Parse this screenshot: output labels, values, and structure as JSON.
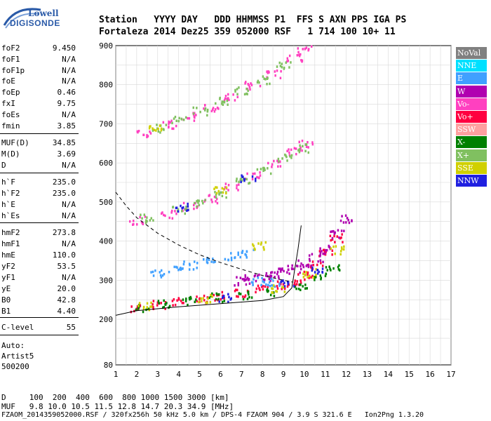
{
  "logo": {
    "line1": "Lowell",
    "line2": "DIGISONDE"
  },
  "header": {
    "row1": "Station   YYYY DAY   DDD HHMMSS P1  FFS S AXN PPS IGA PS",
    "row2": "Fortaleza 2014 Dez25 359 052000 RSF   1 714 100 10+ 11"
  },
  "params": [
    {
      "name": "foF2",
      "value": "9.450"
    },
    {
      "name": "foF1",
      "value": "N/A"
    },
    {
      "name": "foF1p",
      "value": "N/A"
    },
    {
      "name": "foE",
      "value": "N/A"
    },
    {
      "name": "foEp",
      "value": "0.46"
    },
    {
      "name": "fxI",
      "value": "9.75"
    },
    {
      "name": "foEs",
      "value": "N/A"
    },
    {
      "name": "fmin",
      "value": "3.85"
    },
    {
      "name": "MUF(D)",
      "value": "34.85"
    },
    {
      "name": "M(D)",
      "value": "3.69"
    },
    {
      "name": "D",
      "value": "N/A"
    },
    {
      "name": "h`F",
      "value": "235.0"
    },
    {
      "name": "h`F2",
      "value": "235.0"
    },
    {
      "name": "h`E",
      "value": "N/A"
    },
    {
      "name": "h`Es",
      "value": "N/A"
    },
    {
      "name": "hmF2",
      "value": "273.8"
    },
    {
      "name": "hmF1",
      "value": "N/A"
    },
    {
      "name": "hmE",
      "value": "110.0"
    },
    {
      "name": "yF2",
      "value": "53.5"
    },
    {
      "name": "yF1",
      "value": "N/A"
    },
    {
      "name": "yE",
      "value": "20.0"
    },
    {
      "name": "B0",
      "value": "42.8"
    },
    {
      "name": "B1",
      "value": "4.40"
    },
    {
      "name": "C-level",
      "value": "55"
    }
  ],
  "auto": {
    "label": "Auto:",
    "artist": "Artist5",
    "version": "500200"
  },
  "legend": [
    {
      "label": "NoVal",
      "color": "#808080"
    },
    {
      "label": "NNE",
      "color": "#00e0ff"
    },
    {
      "label": "E",
      "color": "#40a0ff"
    },
    {
      "label": "W",
      "color": "#b000b0"
    },
    {
      "label": "Vo-",
      "color": "#ff40c0"
    },
    {
      "label": "Vo+",
      "color": "#ff0040"
    },
    {
      "label": "SSW",
      "color": "#ffa0a0"
    },
    {
      "label": "X-",
      "color": "#008000"
    },
    {
      "label": "X+",
      "color": "#80c060"
    },
    {
      "label": "SSE",
      "color": "#d0d000"
    },
    {
      "label": "NNW",
      "color": "#2020e0"
    }
  ],
  "footer": {
    "d_row": "D     100  200  400  600  800 1000 1500 3000 [km]",
    "muf_row": "MUF   9.8 10.0 10.5 11.5 12.8 14.7 20.3 34.9 [MHz]",
    "file_row": "FZAOM_2014359052000.RSF / 320fx256h 50 kHz 5.0 km / DPS-4 FZAOM 904 / 3.9 S 321.6 E   Ion2Png 1.3.20"
  },
  "chart_data": {
    "type": "scatter",
    "x_ticks": [
      1,
      2,
      3,
      4,
      5,
      6,
      7,
      8,
      9,
      10,
      11,
      12,
      13,
      14,
      15,
      16,
      17
    ],
    "y_ticks": [
      80,
      200,
      300,
      400,
      500,
      600,
      700,
      800,
      900
    ],
    "xlim": [
      1,
      17
    ],
    "ylim": [
      80,
      900
    ],
    "grid": true,
    "legend_position": "right",
    "series": [
      {
        "name": "Vo+",
        "color": "#ff0040",
        "points": [
          [
            2.0,
            230
          ],
          [
            3.0,
            240
          ],
          [
            4.0,
            248
          ],
          [
            5.0,
            255
          ],
          [
            6.0,
            262
          ],
          [
            7.0,
            268
          ],
          [
            8.0,
            278
          ],
          [
            9.0,
            290
          ],
          [
            9.5,
            300
          ],
          [
            10.0,
            315
          ],
          [
            10.5,
            340
          ],
          [
            11.0,
            370
          ],
          [
            11.5,
            410
          ]
        ]
      },
      {
        "name": "X-",
        "color": "#008000",
        "points": [
          [
            2.2,
            232
          ],
          [
            3.3,
            242
          ],
          [
            4.5,
            250
          ],
          [
            5.8,
            258
          ],
          [
            7.2,
            264
          ],
          [
            8.5,
            272
          ],
          [
            9.8,
            286
          ],
          [
            10.8,
            310
          ],
          [
            11.3,
            335
          ]
        ]
      },
      {
        "name": "W",
        "color": "#b000b0",
        "points": [
          [
            7.0,
            300
          ],
          [
            7.5,
            305
          ],
          [
            8.0,
            310
          ],
          [
            8.5,
            318
          ],
          [
            9.0,
            325
          ],
          [
            9.5,
            332
          ],
          [
            10.0,
            345
          ],
          [
            10.5,
            360
          ],
          [
            11.0,
            380
          ],
          [
            11.5,
            420
          ],
          [
            12.0,
            460
          ]
        ]
      },
      {
        "name": "E",
        "color": "#40a0ff",
        "points": [
          [
            3.0,
            320
          ],
          [
            3.8,
            330
          ],
          [
            4.5,
            340
          ],
          [
            5.5,
            350
          ],
          [
            6.5,
            365
          ],
          [
            7.2,
            370
          ],
          [
            7.8,
            300
          ],
          [
            8.5,
            296
          ]
        ]
      },
      {
        "name": "Vo-",
        "color": "#ff40c0",
        "points": [
          [
            2.0,
            455
          ],
          [
            3.5,
            470
          ],
          [
            4.5,
            490
          ],
          [
            5.5,
            510
          ],
          [
            6.5,
            540
          ],
          [
            7.5,
            570
          ],
          [
            8.5,
            600
          ],
          [
            9.5,
            630
          ],
          [
            10.0,
            650
          ],
          [
            2.3,
            675
          ],
          [
            3.5,
            700
          ],
          [
            4.5,
            720
          ],
          [
            5.5,
            745
          ],
          [
            6.5,
            770
          ],
          [
            7.5,
            800
          ],
          [
            8.5,
            830
          ],
          [
            9.5,
            870
          ],
          [
            10.0,
            890
          ]
        ]
      },
      {
        "name": "X+",
        "color": "#80c060",
        "points": [
          [
            2.5,
            460
          ],
          [
            4.0,
            480
          ],
          [
            5.0,
            500
          ],
          [
            6.0,
            525
          ],
          [
            7.0,
            555
          ],
          [
            8.0,
            585
          ],
          [
            9.0,
            615
          ],
          [
            10.0,
            640
          ],
          [
            3.0,
            690
          ],
          [
            4.0,
            710
          ],
          [
            5.0,
            735
          ],
          [
            6.0,
            760
          ],
          [
            7.0,
            785
          ],
          [
            8.0,
            815
          ],
          [
            9.0,
            850
          ]
        ]
      },
      {
        "name": "SSE",
        "color": "#d0d000",
        "points": [
          [
            2.4,
            235
          ],
          [
            5.2,
            255
          ],
          [
            8.7,
            280
          ],
          [
            10.2,
            320
          ],
          [
            11.6,
            380
          ],
          [
            7.8,
            390
          ],
          [
            2.8,
            695
          ],
          [
            6.0,
            530
          ]
        ]
      },
      {
        "name": "NNW",
        "color": "#2020e0",
        "points": [
          [
            6.2,
            258
          ],
          [
            9.2,
            292
          ],
          [
            10.6,
            330
          ],
          [
            4.2,
            488
          ],
          [
            7.3,
            560
          ]
        ]
      }
    ],
    "lines": [
      {
        "name": "profile",
        "style": "solid",
        "points": [
          [
            1.0,
            210
          ],
          [
            2.0,
            222
          ],
          [
            4.0,
            232
          ],
          [
            6.0,
            240
          ],
          [
            8.0,
            248
          ],
          [
            9.0,
            258
          ],
          [
            9.4,
            280
          ],
          [
            9.55,
            330
          ],
          [
            9.7,
            380
          ],
          [
            9.85,
            440
          ]
        ]
      },
      {
        "name": "muf",
        "style": "dashed",
        "points": [
          [
            1.0,
            525
          ],
          [
            1.5,
            490
          ],
          [
            2.0,
            460
          ],
          [
            3.0,
            420
          ],
          [
            4.0,
            390
          ],
          [
            5.0,
            365
          ],
          [
            6.0,
            345
          ],
          [
            7.0,
            328
          ],
          [
            8.0,
            312
          ],
          [
            9.0,
            300
          ],
          [
            9.45,
            295
          ]
        ]
      }
    ]
  }
}
